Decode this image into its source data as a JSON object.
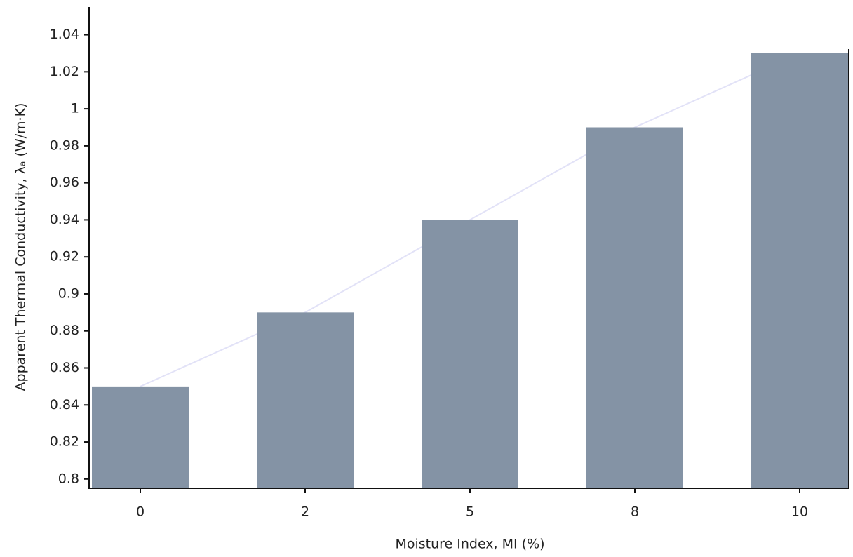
{
  "chart_data": {
    "type": "bar",
    "x_label": "Moisture Index, MI (%)",
    "y_label": "Apparent Thermal Conductivity, λₐ (W/m·K)",
    "categories": [
      "0",
      "2",
      "5",
      "8",
      "10"
    ],
    "values": [
      0.85,
      0.89,
      0.94,
      0.99,
      1.03
    ],
    "color": "#8493a5",
    "connect_line": true,
    "line_color": "#e2e2f7",
    "ylim": [
      0.795,
      1.055
    ],
    "yticks": [
      0.8,
      0.82,
      0.84,
      0.86,
      0.88,
      0.9,
      0.92,
      0.94,
      0.96,
      0.98,
      1,
      1.02,
      1.04
    ],
    "grid": false
  }
}
